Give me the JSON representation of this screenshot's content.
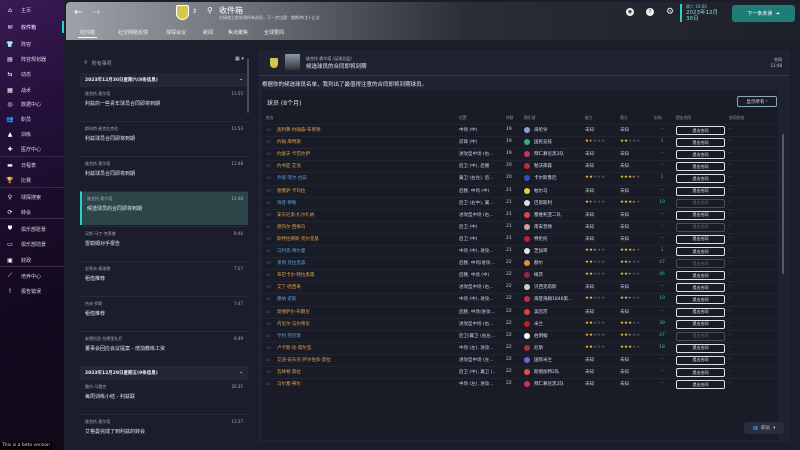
{
  "sidebar": {
    "items": [
      {
        "label": "主页",
        "icon": "home-icon",
        "glyph": "⌂"
      },
      {
        "label": "收件箱",
        "icon": "inbox-icon",
        "glyph": "✉",
        "active": true
      },
      {
        "label": "阵容",
        "icon": "shirt-icon",
        "glyph": "👕"
      },
      {
        "label": "阵容规划器",
        "icon": "clipboard-icon",
        "glyph": "▤"
      },
      {
        "label": "动态",
        "icon": "dynamics-icon",
        "glyph": "⇆"
      },
      {
        "label": "战术",
        "icon": "tactics-icon",
        "glyph": "▦"
      },
      {
        "label": "数据中心",
        "icon": "data-icon",
        "glyph": "◎"
      },
      {
        "label": "职员",
        "icon": "staff-icon",
        "glyph": "👥"
      },
      {
        "label": "训练",
        "icon": "training-icon",
        "glyph": "▲"
      },
      {
        "label": "医疗中心",
        "icon": "medical-icon",
        "glyph": "✚"
      },
      {
        "label": "日程表",
        "icon": "calendar-icon",
        "glyph": "▬"
      },
      {
        "label": "比赛",
        "icon": "trophy-icon",
        "glyph": "🏆"
      },
      {
        "label": "球探搜索",
        "icon": "search-icon",
        "glyph": "⚲"
      },
      {
        "label": "转会",
        "icon": "transfer-icon",
        "glyph": "⟳"
      },
      {
        "label": "俱乐部愿景",
        "icon": "shield-icon",
        "glyph": "⛊"
      },
      {
        "label": "俱乐部前景",
        "icon": "briefcase-icon",
        "glyph": "▭"
      },
      {
        "label": "财政",
        "icon": "money-icon",
        "glyph": "▣"
      },
      {
        "label": "培养中心",
        "icon": "development-icon",
        "glyph": "⟋"
      },
      {
        "label": "报告错误",
        "icon": "alert-icon",
        "glyph": "!"
      }
    ],
    "beta": "This is a beta version"
  },
  "header": {
    "title": "收件箱",
    "subtitle": "在接收之前处理所有消息，下一步比赛：雷斯特(主)-企业",
    "tabs": [
      "收件箱",
      "社交网络反馈",
      "球探会议",
      "新闻",
      "焦点聚焦",
      "全球要闻"
    ],
    "date_label": "周六 10:00",
    "date": "2023年12月",
    "day": "30日",
    "next_button": "下一条未读"
  },
  "messages": {
    "search_placeholder": "所有事项",
    "groups": [
      {
        "label": "2023年12月30日星期六(8条信息)",
        "y": 0
      },
      {
        "label": "2023年12月29日星期五(9条信息)",
        "y": 1
      }
    ],
    "items": [
      {
        "from": "维克托·奥尔塔",
        "time": "11:55",
        "subject": "利兹的一些青年球员合同即将到期"
      },
      {
        "from": "斯科特·麦克拉克伦",
        "time": "11:53",
        "subject": "利兹球员合同即将到期"
      },
      {
        "from": "维克托·奥尔塔",
        "time": "11:48",
        "subject": "利兹球员合同即将到期"
      },
      {
        "from": "维克托·奥尔塔",
        "time": "11:48",
        "subject": "候选球员的合同即将到期",
        "selected": true
      },
      {
        "from": "汉斯-马丁·克莱普",
        "time": "8:46",
        "subject": "雷勒姆对手报告"
      },
      {
        "from": "史蒂夫·谢泼德",
        "time": "7:57",
        "subject": "租借推荐"
      },
      {
        "from": "杰米·罗斯",
        "time": "7:47",
        "subject": "租借推荐"
      },
      {
        "from": "安德烈亚·拉德里扎尼",
        "time": "6:49",
        "subject": "董事会回应会议提案 - 增加教练工资"
      },
      {
        "from": "雷内·马雷克",
        "time": "20:35",
        "subject": "每周训练小结 - 利兹联"
      },
      {
        "from": "维克托·奥尔塔",
        "time": "11:27",
        "subject": "艾格曼完成了到利兹的转会"
      }
    ]
  },
  "detail": {
    "sender": "维克托·奥尔塔 (足球总监)",
    "subject": "候选球员的合同即将到期",
    "contract_tag": "合同",
    "contract_time": "11:48",
    "intro": "根据你的候选球员名单，我列出了最值得注意的合同即将到期球员。",
    "card_title": "球员 (8个月)",
    "show_all": "显示所有",
    "columns": [
      "姓名",
      "位置",
      "年龄",
      "俱乐部",
      "能力",
      "潜力",
      "出场",
      "提出合同",
      "合同状态"
    ],
    "offer_label": "提出合同",
    "row_tag": "CS",
    "rows": [
      {
        "name": "奥利弗·约翰森-布莱德",
        "c": "o",
        "pos": "中场 (中)",
        "age": "19",
        "club": "海伦导",
        "clubcolor": "#8fa0d0",
        "abil": "未知",
        "pot": "未知",
        "apps": "-",
        "en": true,
        "stat": "-"
      },
      {
        "name": "约翰·库特斯",
        "c": "o",
        "pos": "前锋 (中)",
        "age": "19",
        "club": "国民竞技",
        "clubcolor": "#2fb080",
        "abil": 1.5,
        "pot": 2,
        "apps": "1",
        "en": true,
        "stat": "-"
      },
      {
        "name": "约瑟夫·卡巴达伊",
        "c": "o",
        "pos": "进攻型中场 (右...",
        "age": "19",
        "club": "拜仁慕尼黑2队",
        "clubcolor": "#d03060",
        "abil": "未知",
        "pot": "未知",
        "apps": "-",
        "en": true,
        "stat": "-"
      },
      {
        "name": "约书亚·艾洛",
        "c": "o",
        "pos": "后卫 (中), 后腰",
        "age": "20",
        "club": "勒沃库森",
        "clubcolor": "#c03030",
        "abil": "未知",
        "pot": "未知",
        "apps": "-",
        "en": true,
        "stat": "-"
      },
      {
        "name": "乔恩·菲尔·古兹",
        "c": "b",
        "pos": "翼卫 (右左), 后...",
        "age": "20",
        "club": "卡尔斯鲁厄",
        "clubcolor": "#3050c0",
        "abil": 2,
        "pot": 3.5,
        "apps": "1",
        "en": true,
        "stat": "-"
      },
      {
        "name": "德塞萨·卡玛拉",
        "c": "o",
        "pos": "后腰, 中场 (中)",
        "age": "21",
        "club": "帕尔马",
        "clubcolor": "#e0d040",
        "abil": "未知",
        "pot": "未知",
        "apps": "-",
        "en": true,
        "stat": "-"
      },
      {
        "name": "海登·穆勒",
        "c": "b",
        "pos": "后卫 (右中), 翼...",
        "age": "21",
        "club": "巴恩斯利",
        "clubcolor": "#dddddd",
        "abil": 1.5,
        "pot": 3.5,
        "apps": "19",
        "en": false,
        "stat": "-"
      },
      {
        "name": "安东尼奥·扎尔扎纳",
        "c": "o",
        "pos": "进攻型中场 (右...",
        "age": "21",
        "club": "塞维利亚二队",
        "clubcolor": "#e04050",
        "abil": "未知",
        "pot": "未知",
        "apps": "-",
        "en": true,
        "stat": "-"
      },
      {
        "name": "德内尔·西梅乌",
        "c": "o",
        "pos": "后卫 (中)",
        "age": "21",
        "club": "南安普顿",
        "clubcolor": "#d0a0a0",
        "abil": "未知",
        "pot": "未知",
        "apps": "-",
        "en": false,
        "stat": "-"
      },
      {
        "name": "斯特拉蒂斯·克尔克基",
        "c": "o",
        "pos": "后卫 (中)",
        "age": "21",
        "club": "特伦托",
        "clubcolor": "#c02030",
        "abil": "未知",
        "pot": "未知",
        "apps": "-",
        "en": true,
        "stat": "-"
      },
      {
        "name": "马利克·蒂尔曼",
        "c": "b",
        "pos": "中场 (中), 进攻...",
        "age": "21",
        "club": "芝加哥",
        "clubcolor": "#e0e0f0",
        "abil": 2.5,
        "pot": 3.5,
        "apps": "1",
        "en": true,
        "stat": "-"
      },
      {
        "name": "莱恩·克拉克森",
        "c": "b",
        "pos": "后腰, 中场/进攻...",
        "age": "22",
        "club": "赫尔",
        "clubcolor": "#e09030",
        "abil": 2,
        "pot": 2.5,
        "apps": "47",
        "en": false,
        "stat": "-"
      },
      {
        "name": "布巴卡尔·特拉奥雷",
        "c": "o",
        "pos": "后腰, 中场 (中)",
        "age": "22",
        "club": "梅茨",
        "clubcolor": "#a02040",
        "abil": 2,
        "pot": 2.5,
        "apps": "46",
        "en": true,
        "stat": "-"
      },
      {
        "name": "艾丁·哈西奇",
        "c": "o",
        "pos": "进攻型中场 (右...",
        "age": "22",
        "club": "贝西克塔斯",
        "clubcolor": "#cccccc",
        "abil": "未知",
        "pot": "未知",
        "apps": "-",
        "en": true,
        "stat": "-"
      },
      {
        "name": "康纳·诺斯",
        "c": "b",
        "pos": "中场 (中), 进攻...",
        "age": "22",
        "club": "海登海姆1846第...",
        "clubcolor": "#c03040",
        "abil": 2,
        "pot": 2.5,
        "apps": "19",
        "en": true,
        "stat": "-"
      },
      {
        "name": "莫德萨尔·布朗尼",
        "c": "o",
        "pos": "后腰, 中场/进攻...",
        "age": "22",
        "club": "美因茨",
        "clubcolor": "#e04040",
        "abil": "未知",
        "pot": "未知",
        "apps": "-",
        "en": true,
        "stat": "-"
      },
      {
        "name": "内尼尔·马尔蒂尼",
        "c": "o",
        "pos": "进攻型中场 (右...",
        "age": "22",
        "club": "米兰",
        "clubcolor": "#c02020",
        "abil": 2,
        "pot": 3,
        "apps": "39",
        "en": true,
        "stat": "-"
      },
      {
        "name": "亨利·劳伦斯",
        "c": "b",
        "pos": "后卫/翼卫 (右左...",
        "age": "22",
        "club": "伯明翰",
        "clubcolor": "#ffffff",
        "abil": 2,
        "pot": 2.5,
        "apps": "47",
        "en": false,
        "stat": "-"
      },
      {
        "name": "卢卡斯·达·席尔瓦",
        "c": "o",
        "pos": "中场 (左), 进攻...",
        "age": "22",
        "club": "尼斯",
        "clubcolor": "#b03030",
        "abil": 2,
        "pot": 3,
        "apps": "18",
        "en": true,
        "stat": "-"
      },
      {
        "name": "艾迪·安东尼·萨尔伯多·莫拉",
        "c": "o",
        "pos": "进攻型中场 (左...",
        "age": "22",
        "club": "国际米兰",
        "clubcolor": "#6070d0",
        "abil": "未知",
        "pot": "未知",
        "apps": "-",
        "en": true,
        "stat": "-"
      },
      {
        "name": "瓦林顿·莫拉",
        "c": "o",
        "pos": "后卫 (中), 翼卫 (...",
        "age": "22",
        "club": "斯图加特2队",
        "clubcolor": "#e05050",
        "abil": "未知",
        "pot": "未知",
        "apps": "-",
        "en": true,
        "stat": "-"
      },
      {
        "name": "马尔塞·蒂尔",
        "c": "o",
        "pos": "中场 (左), 进攻...",
        "age": "22",
        "club": "拜仁慕尼黑2队",
        "clubcolor": "#d03060",
        "abil": "未知",
        "pot": "未知",
        "apps": "-",
        "en": true,
        "stat": "-"
      }
    ],
    "staff_button": "职员"
  },
  "colors": {
    "accent": "#2ad0d0",
    "next_button": "#1e7d78",
    "star": "#f2c230",
    "name_orange": "#e0a24a",
    "name_blue": "#5c9fe0"
  }
}
